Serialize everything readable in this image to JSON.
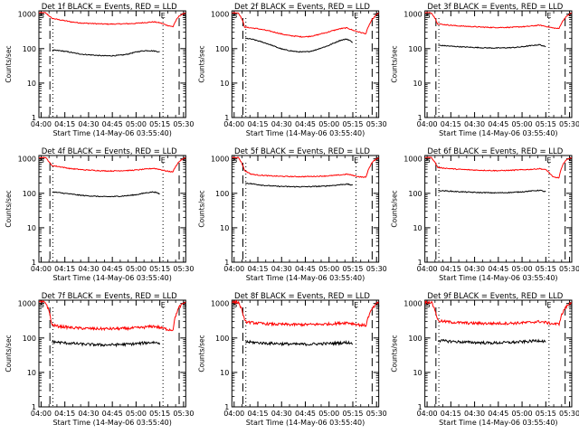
{
  "chart_data": [
    {
      "type": "line",
      "title": "Det 1f BLACK = Events, RED = LLD",
      "xlabel": "Start Time (14-May-06 03:55:40)",
      "ylabel": "Counts/sec",
      "x_ticks": [
        "04:00",
        "04:15",
        "04:30",
        "04:45",
        "05:00",
        "05:15",
        "05:30"
      ],
      "y_ticks": [
        "1",
        "10",
        "100",
        "1000"
      ],
      "ylim": [
        1,
        1000
      ],
      "markers": [
        "S",
        "E",
        "S"
      ],
      "black_profile": [
        null,
        null,
        90,
        88,
        84,
        78,
        72,
        68,
        66,
        64,
        62,
        62,
        63,
        65,
        70,
        78,
        85,
        88,
        86,
        80,
        null,
        null,
        null,
        null
      ],
      "red_profile": [
        1100,
        1100,
        760,
        700,
        650,
        600,
        570,
        550,
        540,
        530,
        520,
        515,
        520,
        525,
        530,
        540,
        560,
        580,
        600,
        560,
        480,
        430,
        900,
        1100
      ],
      "series": [
        {
          "name": "BLACK = Events",
          "color": "#000000"
        },
        {
          "name": "RED = LLD",
          "color": "#ff0000"
        }
      ]
    },
    {
      "type": "line",
      "title": "Det 2f BLACK = Events, RED = LLD",
      "xlabel": "Start Time (14-May-06 03:55:40)",
      "ylabel": "Counts/sec",
      "x_ticks": [
        "04:00",
        "04:15",
        "04:30",
        "04:45",
        "05:00",
        "05:15",
        "05:30"
      ],
      "y_ticks": [
        "1",
        "10",
        "100",
        "1000"
      ],
      "ylim": [
        1,
        1000
      ],
      "markers": [
        "S",
        "E",
        "S"
      ],
      "black_profile": [
        null,
        null,
        200,
        190,
        170,
        150,
        130,
        110,
        95,
        88,
        82,
        80,
        82,
        90,
        105,
        120,
        145,
        175,
        190,
        150,
        null,
        null,
        null,
        null
      ],
      "red_profile": [
        1100,
        1100,
        420,
        400,
        380,
        350,
        320,
        290,
        260,
        240,
        230,
        220,
        225,
        240,
        270,
        300,
        340,
        380,
        400,
        340,
        300,
        270,
        700,
        1100
      ],
      "series": [
        {
          "name": "BLACK = Events",
          "color": "#000000"
        },
        {
          "name": "RED = LLD",
          "color": "#ff0000"
        }
      ]
    },
    {
      "type": "line",
      "title": "Det 3f BLACK = Events, RED = LLD",
      "xlabel": "Start Time (14-May-06 03:55:40)",
      "ylabel": "Counts/sec",
      "x_ticks": [
        "04:00",
        "04:15",
        "04:30",
        "04:45",
        "05:00",
        "05:15",
        "05:30"
      ],
      "y_ticks": [
        "1",
        "10",
        "100",
        "1000"
      ],
      "ylim": [
        1,
        1000
      ],
      "markers": [
        "S",
        "E",
        "S"
      ],
      "black_profile": [
        null,
        null,
        125,
        122,
        118,
        115,
        112,
        110,
        108,
        106,
        105,
        104,
        105,
        106,
        108,
        112,
        118,
        125,
        130,
        110,
        null,
        null,
        null,
        null
      ],
      "red_profile": [
        1100,
        1100,
        520,
        500,
        480,
        460,
        450,
        440,
        430,
        420,
        415,
        410,
        412,
        415,
        420,
        430,
        440,
        460,
        480,
        440,
        400,
        380,
        800,
        1100
      ],
      "series": [
        {
          "name": "BLACK = Events",
          "color": "#000000"
        },
        {
          "name": "RED = LLD",
          "color": "#ff0000"
        }
      ]
    },
    {
      "type": "line",
      "title": "Det 4f BLACK = Events, RED = LLD",
      "xlabel": "Start Time (14-May-06 03:55:40)",
      "ylabel": "Counts/sec",
      "x_ticks": [
        "04:00",
        "04:15",
        "04:30",
        "04:45",
        "05:00",
        "05:15",
        "05:30"
      ],
      "y_ticks": [
        "1",
        "10",
        "100",
        "1000"
      ],
      "ylim": [
        1,
        1000
      ],
      "markers": [
        "S",
        "E",
        "S"
      ],
      "black_profile": [
        null,
        null,
        110,
        105,
        100,
        95,
        90,
        86,
        84,
        82,
        80,
        80,
        81,
        83,
        86,
        90,
        97,
        105,
        110,
        95,
        null,
        null,
        null,
        null
      ],
      "red_profile": [
        1100,
        1100,
        640,
        600,
        560,
        520,
        500,
        480,
        470,
        460,
        450,
        445,
        448,
        455,
        460,
        470,
        490,
        510,
        530,
        490,
        440,
        420,
        850,
        1100
      ],
      "series": [
        {
          "name": "BLACK = Events",
          "color": "#000000"
        },
        {
          "name": "RED = LLD",
          "color": "#ff0000"
        }
      ]
    },
    {
      "type": "line",
      "title": "Det 5f BLACK = Events, RED = LLD",
      "xlabel": "Start Time (14-May-06 03:55:40)",
      "ylabel": "Counts/sec",
      "x_ticks": [
        "04:00",
        "04:15",
        "04:30",
        "04:45",
        "05:00",
        "05:15",
        "05:30"
      ],
      "y_ticks": [
        "1",
        "10",
        "100",
        "1000"
      ],
      "ylim": [
        1,
        1000
      ],
      "markers": [
        "S",
        "E",
        "S"
      ],
      "black_profile": [
        null,
        null,
        200,
        190,
        180,
        170,
        165,
        160,
        158,
        156,
        155,
        155,
        156,
        158,
        160,
        165,
        170,
        178,
        185,
        170,
        null,
        null,
        null,
        null
      ],
      "red_profile": [
        1100,
        1100,
        450,
        360,
        340,
        330,
        320,
        315,
        310,
        308,
        305,
        305,
        308,
        310,
        315,
        320,
        330,
        340,
        360,
        330,
        300,
        290,
        800,
        1100
      ],
      "series": [
        {
          "name": "BLACK = Events",
          "color": "#000000"
        },
        {
          "name": "RED = LLD",
          "color": "#ff0000"
        }
      ]
    },
    {
      "type": "line",
      "title": "Det 6f BLACK = Events, RED = LLD",
      "xlabel": "Start Time (14-May-06 03:55:40)",
      "ylabel": "Counts/sec",
      "x_ticks": [
        "04:00",
        "04:15",
        "04:30",
        "04:45",
        "05:00",
        "05:15",
        "05:30"
      ],
      "y_ticks": [
        "1",
        "10",
        "100",
        "1000"
      ],
      "ylim": [
        1,
        1000
      ],
      "markers": [
        "S",
        "E",
        "S"
      ],
      "black_profile": [
        null,
        null,
        120,
        118,
        115,
        112,
        110,
        108,
        106,
        105,
        104,
        103,
        104,
        105,
        107,
        110,
        114,
        118,
        122,
        110,
        null,
        null,
        null,
        null
      ],
      "red_profile": [
        1100,
        1100,
        560,
        540,
        520,
        500,
        490,
        480,
        470,
        465,
        460,
        455,
        458,
        462,
        470,
        480,
        490,
        500,
        520,
        480,
        300,
        280,
        900,
        1100
      ],
      "series": [
        {
          "name": "BLACK = Events",
          "color": "#000000"
        },
        {
          "name": "RED = LLD",
          "color": "#ff0000"
        }
      ]
    },
    {
      "type": "line",
      "title": "Det 7f BLACK = Events, RED = LLD",
      "xlabel": "Start Time (14-May-06 03:55:40)",
      "ylabel": "Counts/sec",
      "x_ticks": [
        "04:00",
        "04:15",
        "04:30",
        "04:45",
        "05:00",
        "05:15",
        "05:30"
      ],
      "y_ticks": [
        "1",
        "10",
        "100",
        "1000"
      ],
      "ylim": [
        1,
        1000
      ],
      "markers": [
        "S",
        "E",
        "S"
      ],
      "black_profile": [
        null,
        null,
        78,
        75,
        72,
        70,
        68,
        66,
        65,
        64,
        63,
        63,
        64,
        65,
        66,
        68,
        70,
        73,
        75,
        70,
        null,
        null,
        null,
        null
      ],
      "red_profile": [
        1100,
        1100,
        240,
        220,
        210,
        200,
        195,
        190,
        188,
        186,
        185,
        185,
        186,
        188,
        190,
        195,
        200,
        210,
        220,
        200,
        180,
        170,
        800,
        1100
      ],
      "series": [
        {
          "name": "BLACK = Events",
          "color": "#000000"
        },
        {
          "name": "RED = LLD",
          "color": "#ff0000"
        }
      ]
    },
    {
      "type": "line",
      "title": "Det 8f BLACK = Events, RED = LLD",
      "xlabel": "Start Time (14-May-06 03:55:40)",
      "ylabel": "Counts/sec",
      "x_ticks": [
        "04:00",
        "04:15",
        "04:30",
        "04:45",
        "05:00",
        "05:15",
        "05:30"
      ],
      "y_ticks": [
        "1",
        "10",
        "100",
        "1000"
      ],
      "ylim": [
        1,
        1000
      ],
      "markers": [
        "S",
        "E",
        "S"
      ],
      "black_profile": [
        null,
        null,
        78,
        75,
        73,
        71,
        70,
        69,
        68,
        67,
        66,
        66,
        66,
        67,
        68,
        69,
        70,
        72,
        74,
        70,
        null,
        null,
        null,
        null
      ],
      "red_profile": [
        1100,
        1100,
        300,
        280,
        270,
        260,
        255,
        250,
        248,
        246,
        245,
        245,
        246,
        248,
        250,
        255,
        260,
        270,
        280,
        260,
        240,
        230,
        700,
        1100
      ],
      "series": [
        {
          "name": "BLACK = Events",
          "color": "#000000"
        },
        {
          "name": "RED = LLD",
          "color": "#ff0000"
        }
      ]
    },
    {
      "type": "line",
      "title": "Det 9f BLACK = Events, RED = LLD",
      "xlabel": "Start Time (14-May-06 03:55:40)",
      "ylabel": "Counts/sec",
      "x_ticks": [
        "04:00",
        "04:15",
        "04:30",
        "04:45",
        "05:00",
        "05:15",
        "05:30"
      ],
      "y_ticks": [
        "1",
        "10",
        "100",
        "1000"
      ],
      "ylim": [
        1,
        1000
      ],
      "markers": [
        "S",
        "E",
        "S"
      ],
      "black_profile": [
        null,
        null,
        85,
        82,
        80,
        78,
        76,
        75,
        74,
        73,
        72,
        72,
        73,
        74,
        75,
        77,
        79,
        82,
        85,
        78,
        null,
        null,
        null,
        null
      ],
      "red_profile": [
        1100,
        1100,
        320,
        300,
        290,
        280,
        275,
        270,
        268,
        266,
        265,
        265,
        266,
        268,
        270,
        275,
        280,
        290,
        300,
        280,
        260,
        250,
        750,
        1100
      ],
      "series": [
        {
          "name": "BLACK = Events",
          "color": "#000000"
        },
        {
          "name": "RED = LLD",
          "color": "#ff0000"
        }
      ]
    }
  ]
}
